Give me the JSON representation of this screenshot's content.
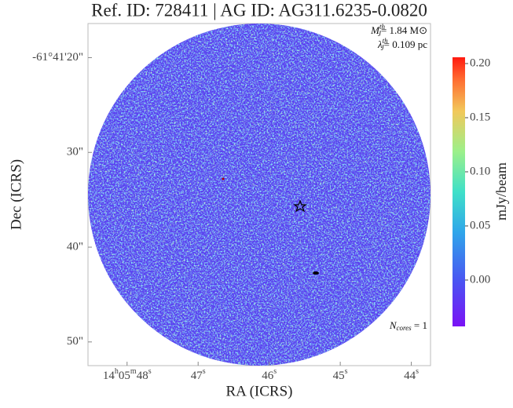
{
  "chart_data": {
    "type": "image",
    "title": "Ref. ID: 728411 | AG ID: AG311.6235-0.0820",
    "xlabel": "RA (ICRS)",
    "ylabel": "Dec (ICRS)",
    "xlim": [
      48.55,
      43.73
    ],
    "xticks": [
      {
        "value": 48,
        "label": "14h05m48s"
      },
      {
        "value": 47,
        "label": "47s"
      },
      {
        "value": 46,
        "label": "46s"
      },
      {
        "value": 45,
        "label": "45s"
      },
      {
        "value": 44,
        "label": "44s"
      }
    ],
    "ylim": [
      16.4,
      52.5
    ],
    "yticks": [
      {
        "value": 20,
        "label": "-61°41'20\""
      },
      {
        "value": 30,
        "label": "30\""
      },
      {
        "value": 40,
        "label": "40\""
      },
      {
        "value": 50,
        "label": "50\""
      }
    ],
    "colorbar": {
      "label": "mJy/beam",
      "lim": [
        -0.0428,
        0.2058
      ],
      "ticks": [
        {
          "value": 0,
          "label": "0.00"
        },
        {
          "value": 0.05,
          "label": "0.05"
        },
        {
          "value": 0.1,
          "label": "0.10"
        },
        {
          "value": 0.15,
          "label": "0.15"
        },
        {
          "value": 0.2,
          "label": "0.20"
        }
      ]
    },
    "annotations": [
      {
        "symbol": "M",
        "sub": "J",
        "sup": "th",
        "text": "= 1.84 M⊙"
      },
      {
        "symbol": "λ",
        "sub": "J",
        "sup": "th",
        "text": "= 0.109 pc"
      },
      {
        "symbol": "N",
        "sub": "cores",
        "text": " = 1"
      }
    ]
  }
}
